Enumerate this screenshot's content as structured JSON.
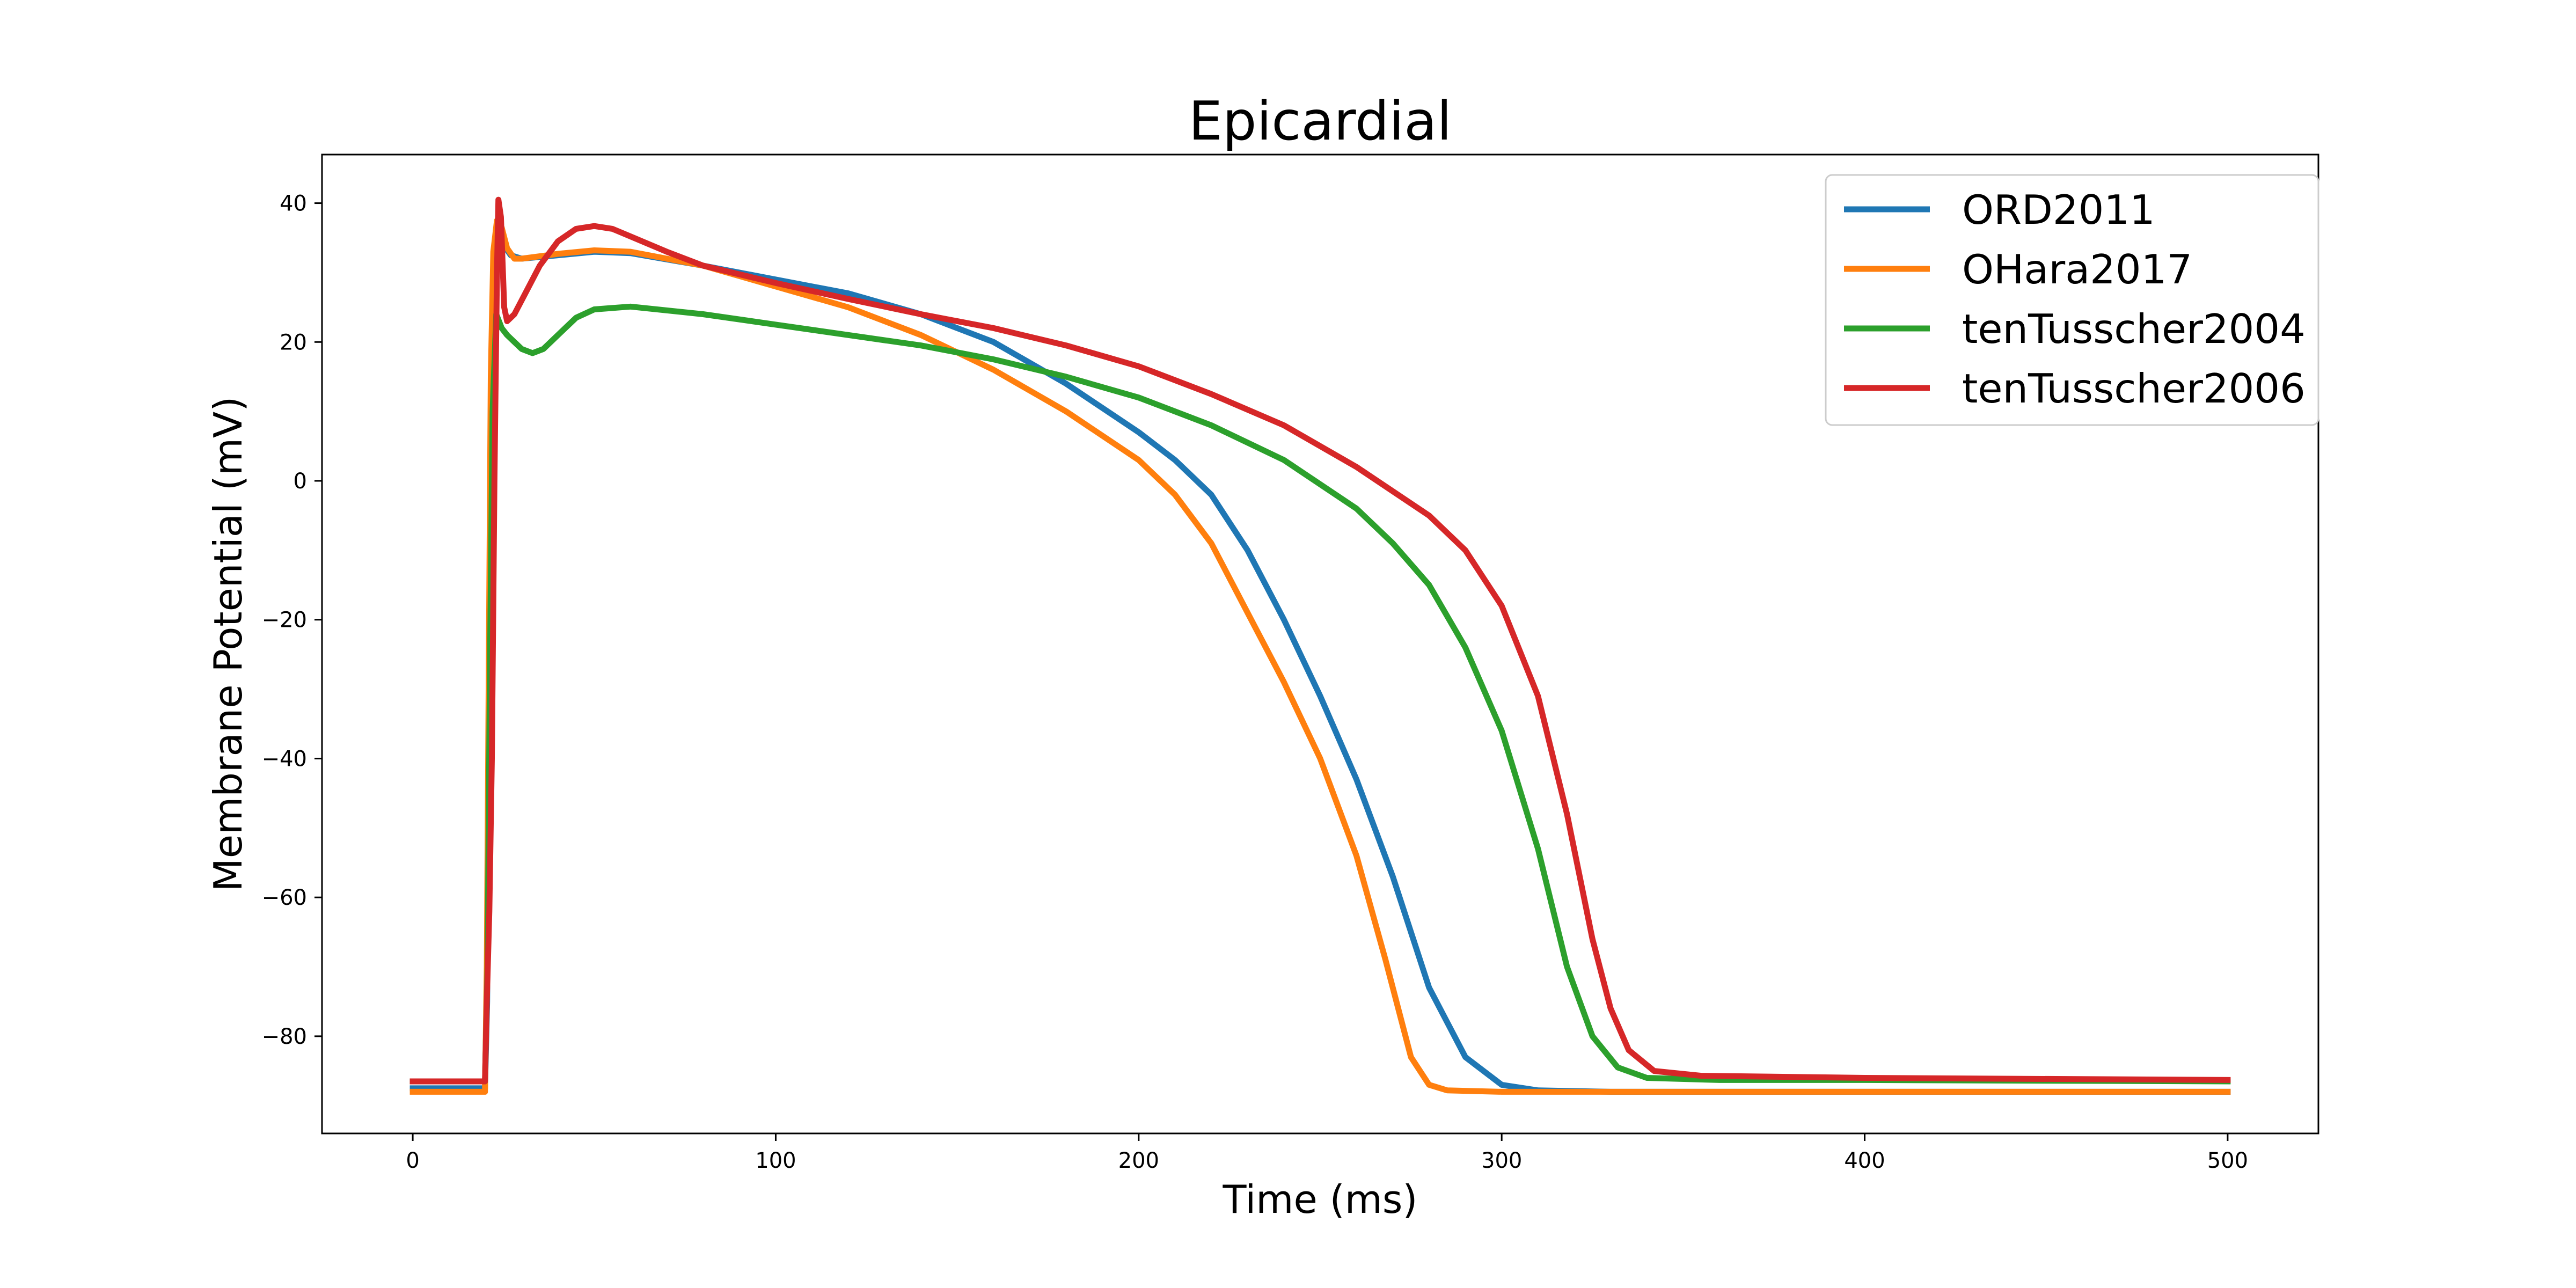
{
  "chart_data": {
    "type": "line",
    "title": "Epicardial",
    "xlabel": "Time (ms)",
    "ylabel": "Membrane Potential (mV)",
    "xlim": [
      -25,
      525
    ],
    "ylim": [
      -94,
      47
    ],
    "xticks": [
      0,
      100,
      200,
      300,
      400,
      500
    ],
    "yticks": [
      40,
      20,
      0,
      -20,
      -40,
      -60,
      -80
    ],
    "xtick_labels": [
      "0",
      "100",
      "200",
      "300",
      "400",
      "500"
    ],
    "ytick_labels": [
      "40",
      "20",
      "0",
      "−20",
      "−40",
      "−60",
      "−80"
    ],
    "grid": false,
    "legend_position": "top-right",
    "series": [
      {
        "name": "ORD2011",
        "color": "#1f77b4",
        "points": [
          [
            0,
            -87.5
          ],
          [
            19.9,
            -87.5
          ],
          [
            20.5,
            -75
          ],
          [
            21,
            -40
          ],
          [
            21.7,
            5
          ],
          [
            22.5,
            32
          ],
          [
            23.5,
            36
          ],
          [
            25,
            34
          ],
          [
            27,
            32.5
          ],
          [
            30,
            32
          ],
          [
            40,
            32.5
          ],
          [
            50,
            33
          ],
          [
            60,
            32.8
          ],
          [
            80,
            31
          ],
          [
            100,
            29
          ],
          [
            120,
            27
          ],
          [
            140,
            24
          ],
          [
            160,
            20
          ],
          [
            180,
            14
          ],
          [
            200,
            7
          ],
          [
            210,
            3
          ],
          [
            220,
            -2
          ],
          [
            230,
            -10
          ],
          [
            240,
            -20
          ],
          [
            250,
            -31
          ],
          [
            260,
            -43
          ],
          [
            270,
            -57
          ],
          [
            280,
            -73
          ],
          [
            290,
            -83
          ],
          [
            300,
            -87
          ],
          [
            310,
            -87.8
          ],
          [
            330,
            -88
          ],
          [
            400,
            -88
          ],
          [
            500,
            -88
          ]
        ]
      },
      {
        "name": "OHara2017",
        "color": "#ff7f0e",
        "points": [
          [
            0,
            -88
          ],
          [
            19.9,
            -88
          ],
          [
            20.4,
            -70
          ],
          [
            20.9,
            -30
          ],
          [
            21.5,
            15
          ],
          [
            22.2,
            33
          ],
          [
            23.2,
            37.5
          ],
          [
            24.5,
            36.5
          ],
          [
            26,
            33.5
          ],
          [
            28,
            32
          ],
          [
            30,
            32
          ],
          [
            40,
            32.7
          ],
          [
            50,
            33.2
          ],
          [
            60,
            33
          ],
          [
            80,
            31
          ],
          [
            100,
            28
          ],
          [
            120,
            25
          ],
          [
            140,
            21
          ],
          [
            160,
            16
          ],
          [
            180,
            10
          ],
          [
            200,
            3
          ],
          [
            210,
            -2
          ],
          [
            220,
            -9
          ],
          [
            230,
            -19
          ],
          [
            240,
            -29
          ],
          [
            250,
            -40
          ],
          [
            260,
            -54
          ],
          [
            268,
            -69
          ],
          [
            275,
            -83
          ],
          [
            280,
            -87
          ],
          [
            285,
            -87.8
          ],
          [
            300,
            -88
          ],
          [
            400,
            -88
          ],
          [
            500,
            -88
          ]
        ]
      },
      {
        "name": "tenTusscher2004",
        "color": "#2ca02c",
        "points": [
          [
            0,
            -86.5
          ],
          [
            19.9,
            -86.5
          ],
          [
            20.6,
            -70
          ],
          [
            21.3,
            -25
          ],
          [
            22,
            10
          ],
          [
            23,
            24
          ],
          [
            24.5,
            22
          ],
          [
            26,
            21
          ],
          [
            28,
            20
          ],
          [
            30,
            19
          ],
          [
            33,
            18.4
          ],
          [
            36,
            19
          ],
          [
            40,
            21
          ],
          [
            45,
            23.5
          ],
          [
            50,
            24.7
          ],
          [
            60,
            25.1
          ],
          [
            80,
            24
          ],
          [
            100,
            22.5
          ],
          [
            120,
            21
          ],
          [
            140,
            19.5
          ],
          [
            160,
            17.5
          ],
          [
            180,
            15
          ],
          [
            200,
            12
          ],
          [
            220,
            8
          ],
          [
            240,
            3
          ],
          [
            260,
            -4
          ],
          [
            270,
            -9
          ],
          [
            280,
            -15
          ],
          [
            290,
            -24
          ],
          [
            300,
            -36
          ],
          [
            310,
            -53
          ],
          [
            318,
            -70
          ],
          [
            325,
            -80
          ],
          [
            332,
            -84.5
          ],
          [
            340,
            -86
          ],
          [
            360,
            -86.3
          ],
          [
            400,
            -86.3
          ],
          [
            500,
            -86.5
          ]
        ]
      },
      {
        "name": "tenTusscher2006",
        "color": "#d62728",
        "points": [
          [
            0,
            -86.5
          ],
          [
            19.9,
            -86.5
          ],
          [
            20.4,
            -75
          ],
          [
            21.1,
            -62
          ],
          [
            21.8,
            -40
          ],
          [
            22.5,
            0
          ],
          [
            23.2,
            30
          ],
          [
            23.6,
            40.5
          ],
          [
            24.3,
            38
          ],
          [
            25.2,
            25
          ],
          [
            26,
            23
          ],
          [
            28,
            24
          ],
          [
            31,
            27
          ],
          [
            35,
            31
          ],
          [
            40,
            34.5
          ],
          [
            45,
            36.3
          ],
          [
            50,
            36.7
          ],
          [
            55,
            36.3
          ],
          [
            60,
            35.2
          ],
          [
            70,
            33
          ],
          [
            80,
            31
          ],
          [
            100,
            28.5
          ],
          [
            120,
            26.2
          ],
          [
            140,
            24
          ],
          [
            160,
            22
          ],
          [
            180,
            19.5
          ],
          [
            200,
            16.5
          ],
          [
            220,
            12.5
          ],
          [
            240,
            8
          ],
          [
            260,
            2
          ],
          [
            280,
            -5
          ],
          [
            290,
            -10
          ],
          [
            300,
            -18
          ],
          [
            310,
            -31
          ],
          [
            318,
            -48
          ],
          [
            325,
            -66
          ],
          [
            330,
            -76
          ],
          [
            335,
            -82
          ],
          [
            342,
            -85
          ],
          [
            355,
            -85.7
          ],
          [
            400,
            -86
          ],
          [
            500,
            -86.3
          ]
        ]
      }
    ]
  }
}
